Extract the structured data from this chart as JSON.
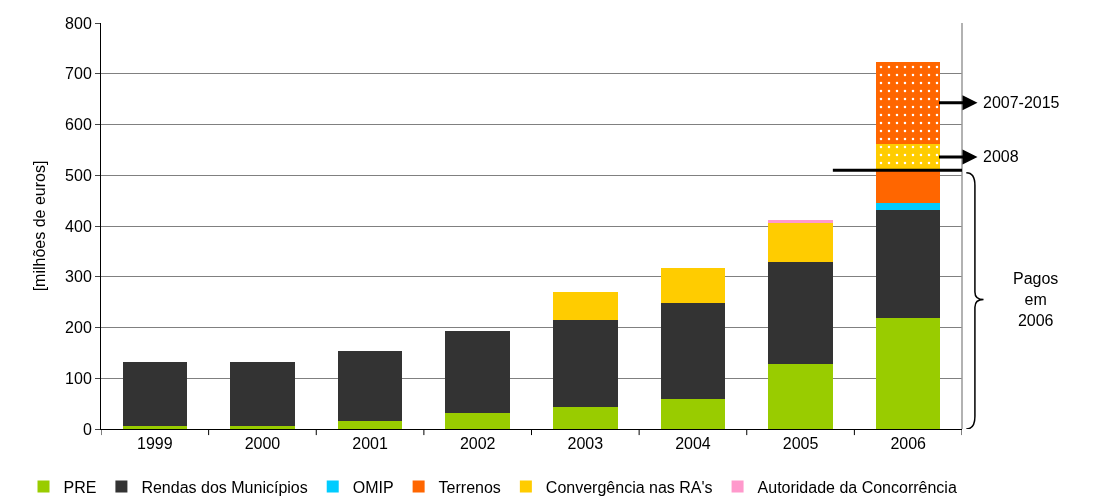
{
  "chart_data": {
    "type": "bar",
    "stacked": true,
    "ylabel": "[milhões de euros]",
    "categories": [
      "1999",
      "2000",
      "2001",
      "2002",
      "2003",
      "2004",
      "2005",
      "2006"
    ],
    "series": [
      {
        "name": "PRE",
        "color": "#99cc00",
        "values": [
          5,
          5,
          16,
          32,
          44,
          60,
          129,
          218
        ]
      },
      {
        "name": "Rendas dos Municípios",
        "color": "#333333",
        "values": [
          128,
          128,
          138,
          162,
          170,
          189,
          201,
          214
        ]
      },
      {
        "name": "OMIP",
        "color": "#00ccff",
        "values": [
          null,
          null,
          null,
          null,
          null,
          null,
          null,
          13
        ]
      },
      {
        "name": "Terrenos",
        "color": "#ff6600",
        "values": [
          null,
          null,
          null,
          null,
          null,
          null,
          null,
          65
        ]
      },
      {
        "name": "Convergência nas RA's",
        "color": "#ffcc00",
        "values": [
          null,
          null,
          null,
          null,
          55,
          69,
          76,
          null
        ]
      },
      {
        "name": "Autoridade da Concorrência",
        "color": "#ff99cc",
        "values": [
          null,
          null,
          null,
          null,
          null,
          null,
          5,
          null
        ]
      },
      {
        "color": "#ffcc00",
        "values": [
          null,
          null,
          null,
          null,
          null,
          null,
          null,
          52
        ]
      },
      {
        "color": "#ff6600",
        "values": [
          null,
          null,
          null,
          null,
          null,
          null,
          null,
          162
        ]
      }
    ],
    "ylim": [
      0,
      800
    ],
    "yticks": [
      0,
      100,
      200,
      300,
      400,
      500,
      600,
      700,
      800
    ],
    "grid": "y",
    "legend": "bottom",
    "ref_lines": [
      {
        "axis": "y",
        "value": 510,
        "color": "#000000"
      }
    ],
    "annotations": [
      "2007-2015",
      "2008",
      "Pagos em 2006"
    ]
  }
}
